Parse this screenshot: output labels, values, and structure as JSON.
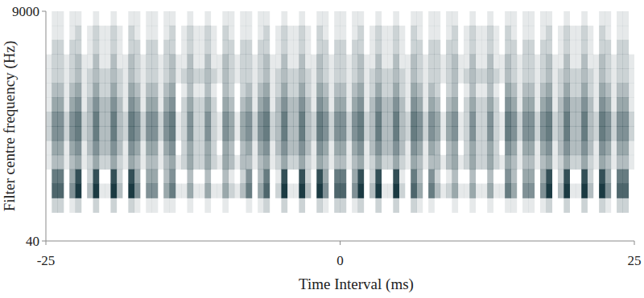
{
  "chart_data": {
    "type": "heatmap",
    "x_label": "Time Interval (ms)",
    "y_label": "Filter centre frequency (Hz)",
    "xlim": [
      -25,
      25
    ],
    "ylim": [
      40,
      9000
    ],
    "xticks": [
      -25,
      0,
      25
    ],
    "yticks": [
      40,
      9000
    ],
    "log": "y",
    "color": "#1b3a42",
    "x": [
      -24.75,
      -24.25,
      -23.75,
      -23.25,
      -22.75,
      -22.25,
      -21.75,
      -21.25,
      -20.75,
      -20.25,
      -19.75,
      -19.25,
      -18.75,
      -18.25,
      -17.75,
      -17.25,
      -16.75,
      -16.25,
      -15.75,
      -15.25,
      -14.75,
      -14.25,
      -13.75,
      -13.25,
      -12.75,
      -12.25,
      -11.75,
      -11.25,
      -10.75,
      -10.25,
      -9.75,
      -9.25,
      -8.75,
      -8.25,
      -7.75,
      -7.25,
      -6.75,
      -6.25,
      -5.75,
      -5.25,
      -4.75,
      -4.25,
      -3.75,
      -3.25,
      -2.75,
      -2.25,
      -1.75,
      -1.25,
      -0.75,
      -0.25,
      0.25,
      0.75,
      1.25,
      1.75,
      2.25,
      2.75,
      3.25,
      3.75,
      4.25,
      4.75,
      5.25,
      5.75,
      6.25,
      6.75,
      7.25,
      7.75,
      8.25,
      8.75,
      9.25,
      9.75,
      10.25,
      10.75,
      11.25,
      11.75,
      12.25,
      12.75,
      13.25,
      13.75,
      14.25,
      14.75,
      15.25,
      15.75,
      16.25,
      16.75,
      17.25,
      17.75,
      18.25,
      18.75,
      19.25,
      19.75,
      20.25,
      20.75,
      21.25,
      21.75,
      22.25,
      22.75,
      23.25,
      23.75,
      24.25,
      24.75
    ],
    "y": [
      7601,
      5416,
      3860,
      2752,
      1962,
      1398,
      997,
      711,
      507,
      361,
      257,
      183,
      131,
      93,
      66,
      47
    ],
    "cells": [
      [
        0,
        1,
        1,
        0,
        1,
        1,
        0,
        0,
        1,
        0,
        0,
        1,
        0,
        0,
        1,
        1,
        0,
        1,
        1,
        0,
        1,
        1,
        0,
        0,
        1,
        0,
        0,
        1,
        0,
        0,
        1,
        1,
        0,
        1,
        1,
        0,
        1,
        1,
        0,
        0,
        1,
        0,
        0,
        1,
        0,
        0,
        1,
        1,
        0,
        1,
        1,
        0,
        1,
        1,
        0,
        0,
        1,
        0,
        0,
        1,
        0,
        0,
        1,
        1,
        0,
        1,
        1,
        0,
        1,
        1,
        0,
        0,
        1,
        0,
        0,
        1,
        0,
        0,
        1,
        1,
        0,
        1,
        1,
        0,
        1,
        1,
        0,
        0,
        1,
        0,
        0,
        1,
        0,
        0,
        1,
        1,
        0,
        1,
        1,
        0
      ],
      [
        0,
        1,
        1,
        0,
        1,
        2,
        0,
        1,
        2,
        1,
        1,
        2,
        1,
        0,
        2,
        1,
        0,
        1,
        1,
        0,
        1,
        2,
        0,
        1,
        2,
        1,
        1,
        2,
        1,
        0,
        2,
        1,
        0,
        1,
        1,
        0,
        1,
        2,
        0,
        1,
        2,
        1,
        1,
        2,
        1,
        0,
        2,
        1,
        0,
        1,
        1,
        0,
        1,
        2,
        0,
        1,
        2,
        1,
        1,
        2,
        1,
        0,
        2,
        1,
        0,
        1,
        1,
        0,
        1,
        2,
        0,
        1,
        2,
        1,
        1,
        2,
        1,
        0,
        2,
        1,
        0,
        1,
        1,
        0,
        1,
        2,
        0,
        1,
        2,
        1,
        1,
        2,
        1,
        0,
        2,
        1,
        0,
        1,
        1,
        0
      ],
      [
        0,
        2,
        2,
        0,
        2,
        2,
        0,
        1,
        2,
        1,
        1,
        2,
        1,
        0,
        2,
        2,
        0,
        2,
        2,
        0,
        2,
        2,
        0,
        1,
        2,
        1,
        1,
        2,
        1,
        0,
        2,
        2,
        0,
        2,
        2,
        0,
        2,
        2,
        0,
        1,
        2,
        1,
        1,
        2,
        1,
        0,
        2,
        2,
        0,
        2,
        2,
        0,
        2,
        2,
        0,
        1,
        2,
        1,
        1,
        2,
        1,
        0,
        2,
        2,
        0,
        2,
        2,
        0,
        2,
        2,
        0,
        1,
        2,
        1,
        1,
        2,
        1,
        0,
        2,
        2,
        0,
        2,
        2,
        0,
        2,
        2,
        0,
        1,
        2,
        1,
        1,
        2,
        1,
        0,
        2,
        2,
        0,
        2,
        2,
        0
      ],
      [
        1,
        2,
        2,
        1,
        2,
        3,
        1,
        1,
        3,
        1,
        1,
        3,
        1,
        1,
        3,
        2,
        1,
        2,
        2,
        1,
        2,
        3,
        1,
        1,
        3,
        1,
        1,
        3,
        1,
        1,
        3,
        2,
        1,
        2,
        2,
        1,
        2,
        3,
        1,
        1,
        3,
        1,
        1,
        3,
        1,
        1,
        3,
        2,
        1,
        2,
        2,
        1,
        2,
        3,
        1,
        1,
        3,
        1,
        1,
        3,
        1,
        1,
        3,
        2,
        1,
        2,
        2,
        1,
        2,
        3,
        1,
        1,
        3,
        1,
        1,
        3,
        1,
        1,
        3,
        2,
        1,
        2,
        2,
        1,
        2,
        3,
        1,
        1,
        3,
        1,
        1,
        3,
        1,
        1,
        3,
        2,
        1,
        2,
        2,
        1
      ],
      [
        1,
        2,
        2,
        1,
        2,
        3,
        1,
        2,
        3,
        2,
        2,
        3,
        2,
        1,
        3,
        2,
        1,
        2,
        2,
        1,
        2,
        3,
        1,
        2,
        3,
        2,
        2,
        3,
        2,
        1,
        3,
        2,
        1,
        2,
        2,
        1,
        2,
        3,
        1,
        2,
        3,
        2,
        2,
        3,
        2,
        1,
        3,
        2,
        1,
        2,
        2,
        1,
        2,
        3,
        1,
        2,
        3,
        2,
        2,
        3,
        2,
        1,
        3,
        2,
        1,
        2,
        2,
        1,
        2,
        3,
        1,
        2,
        3,
        2,
        2,
        3,
        2,
        1,
        3,
        2,
        1,
        2,
        2,
        1,
        2,
        3,
        1,
        2,
        3,
        2,
        2,
        3,
        2,
        1,
        3,
        2,
        1,
        2,
        2,
        1
      ],
      [
        1,
        3,
        3,
        1,
        3,
        4,
        1,
        2,
        4,
        2,
        2,
        4,
        2,
        1,
        4,
        3,
        1,
        3,
        3,
        1,
        3,
        4,
        0,
        1,
        3,
        1,
        1,
        3,
        1,
        0,
        3,
        2,
        0,
        2,
        3,
        1,
        3,
        4,
        1,
        2,
        4,
        2,
        2,
        4,
        2,
        1,
        4,
        3,
        1,
        3,
        3,
        1,
        3,
        4,
        1,
        2,
        4,
        2,
        2,
        4,
        2,
        1,
        4,
        3,
        1,
        3,
        2,
        0,
        2,
        3,
        0,
        1,
        3,
        1,
        1,
        3,
        1,
        0,
        4,
        3,
        1,
        3,
        3,
        1,
        3,
        4,
        1,
        2,
        4,
        2,
        2,
        4,
        2,
        1,
        4,
        3,
        1,
        3,
        3,
        1
      ],
      [
        1,
        4,
        4,
        1,
        4,
        5,
        1,
        3,
        5,
        3,
        3,
        5,
        3,
        1,
        5,
        4,
        1,
        4,
        4,
        1,
        4,
        5,
        0,
        2,
        4,
        2,
        2,
        4,
        2,
        0,
        4,
        3,
        0,
        3,
        4,
        1,
        4,
        5,
        1,
        3,
        5,
        3,
        3,
        5,
        3,
        1,
        5,
        4,
        1,
        4,
        4,
        1,
        4,
        5,
        1,
        3,
        5,
        3,
        3,
        5,
        3,
        1,
        5,
        4,
        1,
        4,
        3,
        0,
        3,
        4,
        0,
        2,
        4,
        2,
        2,
        4,
        2,
        0,
        5,
        4,
        1,
        4,
        4,
        1,
        4,
        5,
        1,
        3,
        5,
        3,
        3,
        5,
        3,
        1,
        5,
        4,
        1,
        4,
        4,
        1
      ],
      [
        2,
        5,
        5,
        2,
        5,
        6,
        2,
        3,
        6,
        3,
        3,
        6,
        3,
        2,
        6,
        5,
        2,
        5,
        5,
        2,
        5,
        6,
        1,
        2,
        5,
        2,
        2,
        5,
        2,
        1,
        5,
        4,
        1,
        4,
        5,
        2,
        5,
        6,
        2,
        3,
        6,
        3,
        3,
        6,
        3,
        2,
        6,
        5,
        2,
        5,
        5,
        2,
        5,
        6,
        2,
        3,
        6,
        3,
        3,
        6,
        3,
        2,
        6,
        5,
        2,
        5,
        4,
        1,
        4,
        5,
        1,
        2,
        5,
        2,
        2,
        5,
        2,
        1,
        6,
        5,
        2,
        5,
        5,
        2,
        5,
        6,
        2,
        3,
        6,
        3,
        3,
        6,
        3,
        2,
        6,
        5,
        2,
        5,
        5,
        2
      ],
      [
        2,
        5,
        5,
        2,
        5,
        6,
        2,
        3,
        6,
        3,
        3,
        6,
        3,
        2,
        6,
        5,
        2,
        5,
        5,
        2,
        5,
        6,
        1,
        2,
        5,
        2,
        2,
        5,
        2,
        1,
        5,
        4,
        1,
        4,
        5,
        2,
        5,
        6,
        2,
        3,
        6,
        3,
        3,
        6,
        3,
        2,
        6,
        5,
        2,
        5,
        5,
        2,
        5,
        6,
        2,
        3,
        6,
        3,
        3,
        6,
        3,
        2,
        6,
        5,
        2,
        5,
        4,
        1,
        4,
        5,
        1,
        2,
        5,
        2,
        2,
        5,
        2,
        1,
        6,
        5,
        2,
        5,
        5,
        2,
        5,
        6,
        2,
        3,
        6,
        3,
        3,
        6,
        3,
        2,
        6,
        5,
        2,
        5,
        5,
        2
      ],
      [
        1,
        4,
        4,
        1,
        4,
        5,
        1,
        3,
        5,
        3,
        3,
        5,
        3,
        1,
        5,
        4,
        1,
        4,
        4,
        1,
        4,
        5,
        0,
        2,
        4,
        2,
        2,
        4,
        2,
        0,
        4,
        3,
        0,
        3,
        4,
        1,
        4,
        5,
        1,
        3,
        5,
        3,
        3,
        5,
        3,
        1,
        5,
        4,
        1,
        4,
        4,
        1,
        4,
        5,
        1,
        3,
        5,
        3,
        3,
        5,
        3,
        1,
        5,
        4,
        1,
        4,
        3,
        0,
        3,
        4,
        0,
        2,
        4,
        2,
        2,
        4,
        2,
        0,
        5,
        4,
        1,
        4,
        4,
        1,
        4,
        5,
        1,
        3,
        5,
        3,
        3,
        5,
        3,
        1,
        5,
        4,
        1,
        4,
        4,
        1
      ],
      [
        1,
        3,
        3,
        1,
        3,
        4,
        1,
        2,
        4,
        2,
        2,
        4,
        2,
        1,
        4,
        3,
        1,
        3,
        3,
        1,
        3,
        4,
        1,
        2,
        4,
        2,
        2,
        4,
        2,
        1,
        4,
        3,
        1,
        3,
        3,
        1,
        3,
        4,
        1,
        2,
        4,
        2,
        2,
        4,
        2,
        1,
        4,
        3,
        1,
        3,
        3,
        1,
        3,
        4,
        1,
        2,
        4,
        2,
        2,
        4,
        2,
        1,
        4,
        3,
        1,
        3,
        3,
        1,
        3,
        4,
        1,
        2,
        4,
        2,
        2,
        4,
        2,
        1,
        4,
        3,
        1,
        3,
        3,
        1,
        3,
        4,
        1,
        2,
        4,
        2,
        2,
        4,
        2,
        1,
        4,
        3,
        1,
        3,
        3,
        1
      ],
      [
        0,
        6,
        6,
        0,
        4,
        8,
        0,
        2,
        8,
        0,
        0,
        8,
        2,
        0,
        8,
        4,
        0,
        4,
        4,
        0,
        3,
        5,
        0,
        0,
        3,
        0,
        0,
        3,
        0,
        0,
        3,
        1,
        0,
        2,
        5,
        0,
        3,
        6,
        0,
        1,
        8,
        0,
        0,
        8,
        2,
        0,
        8,
        4,
        0,
        6,
        6,
        0,
        4,
        8,
        0,
        2,
        8,
        0,
        0,
        8,
        1,
        0,
        6,
        3,
        0,
        5,
        2,
        0,
        1,
        3,
        0,
        0,
        3,
        0,
        0,
        3,
        0,
        0,
        5,
        3,
        0,
        4,
        4,
        0,
        4,
        8,
        0,
        2,
        8,
        0,
        0,
        8,
        2,
        0,
        8,
        4,
        0,
        6,
        6,
        0
      ],
      [
        0,
        7,
        7,
        0,
        5,
        9,
        0,
        3,
        9,
        1,
        1,
        9,
        3,
        0,
        9,
        5,
        0,
        5,
        5,
        0,
        4,
        6,
        1,
        1,
        4,
        1,
        1,
        4,
        1,
        1,
        4,
        2,
        1,
        3,
        6,
        0,
        4,
        7,
        0,
        2,
        9,
        1,
        1,
        9,
        3,
        0,
        9,
        5,
        0,
        7,
        7,
        0,
        5,
        9,
        0,
        3,
        9,
        1,
        1,
        9,
        2,
        0,
        7,
        4,
        0,
        6,
        3,
        1,
        2,
        4,
        1,
        1,
        4,
        1,
        1,
        4,
        1,
        1,
        6,
        4,
        0,
        5,
        5,
        0,
        5,
        9,
        0,
        3,
        9,
        1,
        1,
        9,
        3,
        0,
        9,
        5,
        0,
        7,
        7,
        0
      ],
      [
        0,
        2,
        2,
        0,
        1,
        2,
        0,
        0,
        2,
        0,
        0,
        2,
        0,
        0,
        2,
        1,
        0,
        1,
        1,
        0,
        1,
        1,
        0,
        0,
        1,
        0,
        0,
        1,
        0,
        0,
        1,
        0,
        0,
        0,
        1,
        0,
        1,
        2,
        0,
        0,
        2,
        0,
        0,
        2,
        0,
        0,
        2,
        1,
        0,
        2,
        2,
        0,
        1,
        2,
        0,
        0,
        2,
        0,
        0,
        2,
        0,
        0,
        2,
        1,
        0,
        1,
        0,
        0,
        0,
        1,
        0,
        0,
        1,
        0,
        0,
        1,
        0,
        0,
        1,
        1,
        0,
        1,
        1,
        0,
        1,
        2,
        0,
        0,
        2,
        0,
        0,
        2,
        0,
        0,
        2,
        1,
        0,
        2,
        2,
        0
      ],
      [
        0,
        0,
        0,
        0,
        0,
        0,
        0,
        0,
        0,
        0,
        0,
        0,
        0,
        0,
        0,
        0,
        0,
        0,
        0,
        0,
        0,
        0,
        0,
        0,
        0,
        0,
        0,
        0,
        0,
        0,
        0,
        0,
        0,
        0,
        0,
        0,
        0,
        0,
        0,
        0,
        0,
        0,
        0,
        0,
        0,
        0,
        0,
        0,
        0,
        0,
        0,
        0,
        0,
        0,
        0,
        0,
        0,
        0,
        0,
        0,
        0,
        0,
        0,
        0,
        0,
        0,
        0,
        0,
        0,
        0,
        0,
        0,
        0,
        0,
        0,
        0,
        0,
        0,
        0,
        0,
        0,
        0,
        0,
        0,
        0,
        0,
        0,
        0,
        0,
        0,
        0,
        0,
        0,
        0,
        0,
        0,
        0,
        0,
        0,
        0
      ],
      [
        0,
        0,
        0,
        0,
        0,
        0,
        0,
        0,
        0,
        0,
        0,
        0,
        0,
        0,
        0,
        0,
        0,
        0,
        0,
        0,
        0,
        0,
        0,
        0,
        0,
        0,
        0,
        0,
        0,
        0,
        0,
        0,
        0,
        0,
        0,
        0,
        0,
        0,
        0,
        0,
        0,
        0,
        0,
        0,
        0,
        0,
        0,
        0,
        0,
        0,
        0,
        0,
        0,
        0,
        0,
        0,
        0,
        0,
        0,
        0,
        0,
        0,
        0,
        0,
        0,
        0,
        0,
        0,
        0,
        0,
        0,
        0,
        0,
        0,
        0,
        0,
        0,
        0,
        0,
        0,
        0,
        0,
        0,
        0,
        0,
        0,
        0,
        0,
        0,
        0,
        0,
        0,
        0,
        0,
        0,
        0,
        0,
        0,
        0,
        0
      ]
    ]
  }
}
